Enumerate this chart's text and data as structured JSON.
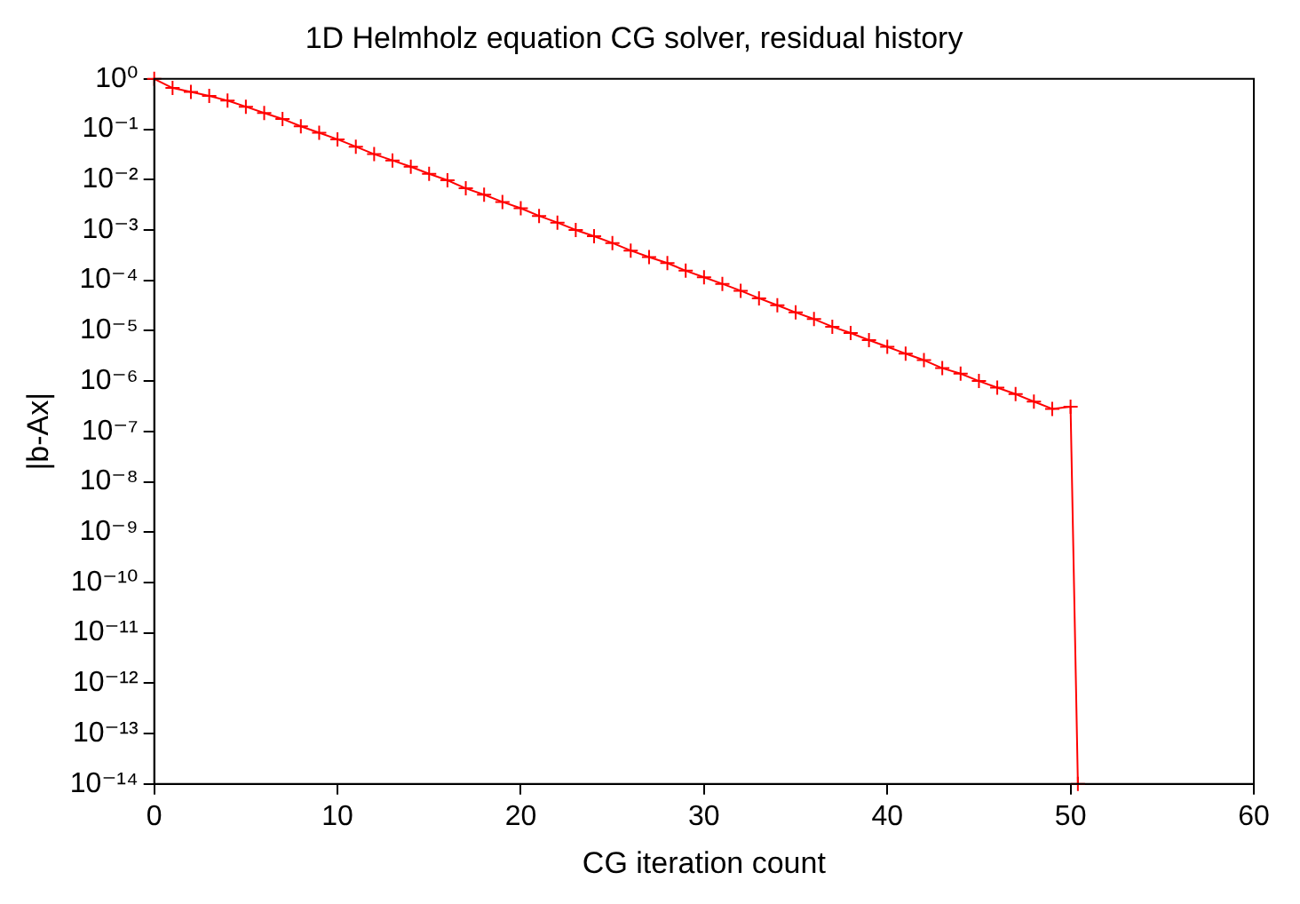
{
  "chart_data": {
    "type": "line",
    "title": "1D Helmholz equation CG solver, residual history",
    "xlabel": "CG iteration count",
    "ylabel": "|b-Ax|",
    "x": [
      0,
      1,
      2,
      3,
      4,
      5,
      6,
      7,
      8,
      9,
      10,
      11,
      12,
      13,
      14,
      15,
      16,
      17,
      18,
      19,
      20,
      21,
      22,
      23,
      24,
      25,
      26,
      27,
      28,
      29,
      30,
      31,
      32,
      33,
      34,
      35,
      36,
      37,
      38,
      39,
      40,
      41,
      42,
      43,
      44,
      45,
      46,
      47,
      48,
      49,
      50,
      50.4
    ],
    "series": [
      {
        "color": "#ff0000",
        "values": [
          1,
          0.66,
          0.55,
          0.46,
          0.37,
          0.28,
          0.21,
          0.16,
          0.114,
          0.085,
          0.063,
          0.045,
          0.032,
          0.024,
          0.018,
          0.013,
          0.0097,
          0.0067,
          0.005,
          0.0036,
          0.0027,
          0.0019,
          0.0014,
          0.001,
          0.00075,
          0.00055,
          0.00039,
          0.00029,
          0.00022,
          0.000155,
          0.000115,
          8.5e-05,
          6.2e-05,
          4.4e-05,
          3.2e-05,
          2.3e-05,
          1.7e-05,
          1.2e-05,
          9e-06,
          6.5e-06,
          4.8e-06,
          3.5e-06,
          2.6e-06,
          1.8e-06,
          1.4e-06,
          1e-06,
          7.4e-07,
          5.5e-07,
          3.9e-07,
          2.8e-07,
          3.1e-07,
          1e-14
        ]
      }
    ],
    "xlim": [
      0,
      60
    ],
    "xticks": [
      0,
      10,
      20,
      30,
      40,
      50,
      60
    ],
    "ylim": [
      1e-14,
      1
    ],
    "log": true,
    "yticks": [
      {
        "value": 1,
        "label": "10⁰"
      },
      {
        "value": 0.1,
        "label": "10⁻¹"
      },
      {
        "value": 0.01,
        "label": "10⁻²"
      },
      {
        "value": 0.001,
        "label": "10⁻³"
      },
      {
        "value": 0.0001,
        "label": "10⁻⁴"
      },
      {
        "value": 1e-05,
        "label": "10⁻⁵"
      },
      {
        "value": 1e-06,
        "label": "10⁻⁶"
      },
      {
        "value": 1e-07,
        "label": "10⁻⁷"
      },
      {
        "value": 1e-08,
        "label": "10⁻⁸"
      },
      {
        "value": 1e-09,
        "label": "10⁻⁹"
      },
      {
        "value": 1e-10,
        "label": "10⁻¹⁰"
      },
      {
        "value": 1e-11,
        "label": "10⁻¹¹"
      },
      {
        "value": 1e-12,
        "label": "10⁻¹²"
      },
      {
        "value": 1e-13,
        "label": "10⁻¹³"
      },
      {
        "value": 1e-14,
        "label": "10⁻¹⁴"
      }
    ],
    "grid": false,
    "legend": false,
    "marker": "cross",
    "line_style": "solid"
  }
}
